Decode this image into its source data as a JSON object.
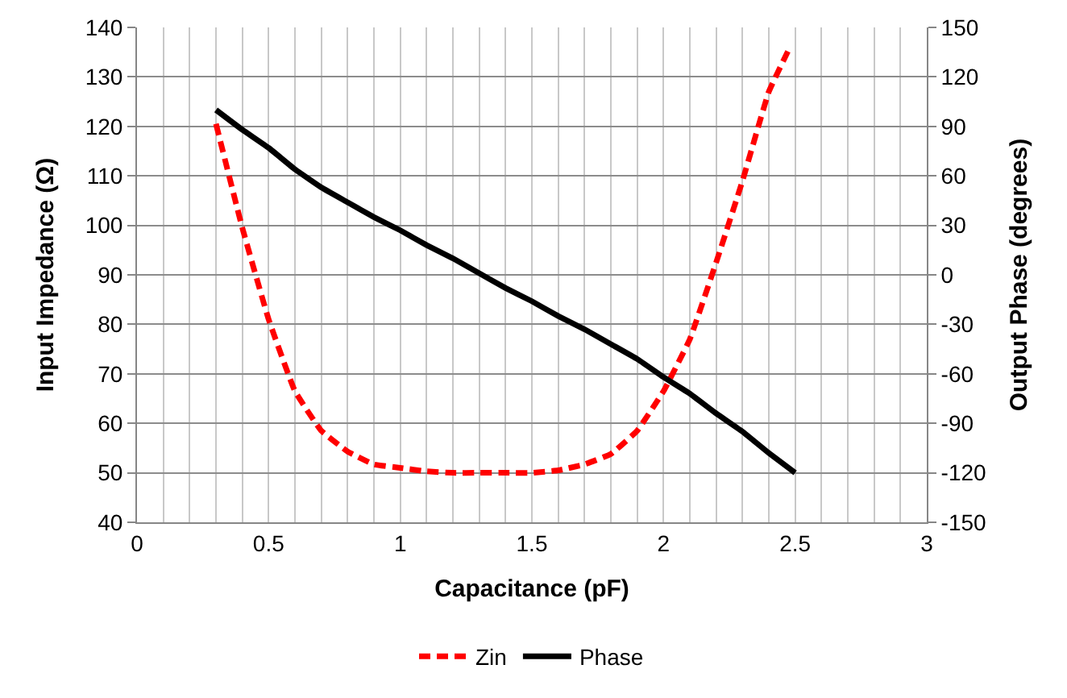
{
  "chart_data": {
    "type": "line",
    "xlabel": "Capacitance (pF)",
    "ylabel": "Input Impedance (Ω)",
    "y2label": "Output Phase (degrees)",
    "series": [
      {
        "name": "Zin",
        "color": "#ff0000",
        "line_style": "dashed",
        "x": [
          0.3,
          0.4,
          0.5,
          0.6,
          0.7,
          0.8,
          0.9,
          1.0,
          1.1,
          1.2,
          1.3,
          1.4,
          1.5,
          1.6,
          1.7,
          1.8,
          1.9,
          2.0,
          2.1,
          2.2,
          2.3,
          2.4,
          2.48
        ],
        "values": [
          120.5,
          99.5,
          81,
          66.5,
          58.5,
          54.3,
          51.7,
          51,
          50.3,
          50,
          50,
          50,
          50,
          50.5,
          51.7,
          53.8,
          58.5,
          66.5,
          77,
          92.5,
          109,
          127,
          136
        ]
      },
      {
        "name": "Phase",
        "color": "#000000",
        "line_style": "solid",
        "axis": "y2",
        "x": [
          0.3,
          0.4,
          0.5,
          0.6,
          0.7,
          0.8,
          0.9,
          1.0,
          1.1,
          1.2,
          1.3,
          1.4,
          1.5,
          1.6,
          1.7,
          1.8,
          1.9,
          2.0,
          2.1,
          2.2,
          2.3,
          2.4,
          2.5
        ],
        "values": [
          100,
          88,
          77,
          64,
          53,
          44,
          35,
          27,
          18,
          10,
          1,
          -8,
          -16,
          -25,
          -33,
          -42,
          -51,
          -62,
          -72,
          -84,
          -95,
          -108,
          -120
        ]
      }
    ],
    "xlim": [
      0,
      3
    ],
    "xticks": [
      0,
      {
        "value": 0.1,
        "label": null
      },
      {
        "value": 0.2,
        "label": null
      },
      {
        "value": 0.3,
        "label": null
      },
      {
        "value": 0.4,
        "label": null
      },
      0.5,
      {
        "value": 0.6,
        "label": null
      },
      {
        "value": 0.7,
        "label": null
      },
      {
        "value": 0.8,
        "label": null
      },
      {
        "value": 0.9,
        "label": null
      },
      1,
      {
        "value": 1.1,
        "label": null
      },
      {
        "value": 1.2,
        "label": null
      },
      {
        "value": 1.3,
        "label": null
      },
      {
        "value": 1.4,
        "label": null
      },
      1.5,
      {
        "value": 1.6,
        "label": null
      },
      {
        "value": 1.7,
        "label": null
      },
      {
        "value": 1.8,
        "label": null
      },
      {
        "value": 1.9,
        "label": null
      },
      2,
      {
        "value": 2.1,
        "label": null
      },
      {
        "value": 2.2,
        "label": null
      },
      {
        "value": 2.3,
        "label": null
      },
      {
        "value": 2.4,
        "label": null
      },
      2.5,
      {
        "value": 2.6,
        "label": null
      },
      {
        "value": 2.7,
        "label": null
      },
      {
        "value": 2.8,
        "label": null
      },
      {
        "value": 2.9,
        "label": null
      },
      3
    ],
    "ylim": [
      40,
      140
    ],
    "yticks": [
      40,
      50,
      60,
      70,
      80,
      90,
      100,
      110,
      120,
      130,
      140
    ],
    "y2lim": [
      -150,
      150
    ],
    "y2ticks": [
      -150,
      -120,
      -90,
      -60,
      -30,
      0,
      30,
      60,
      90,
      120,
      150
    ],
    "grid": true,
    "legend": "bottom",
    "marker": "none"
  }
}
